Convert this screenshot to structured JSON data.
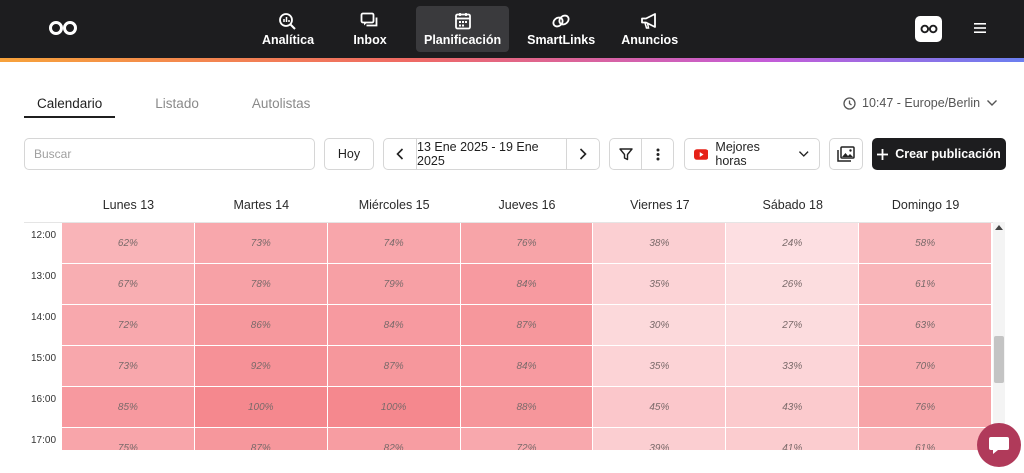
{
  "nav": {
    "items": [
      {
        "label": "Analítica",
        "icon": "analytics-icon"
      },
      {
        "label": "Inbox",
        "icon": "inbox-icon"
      },
      {
        "label": "Planificación",
        "icon": "calendar-icon",
        "active": true
      },
      {
        "label": "SmartLinks",
        "icon": "link-icon"
      },
      {
        "label": "Anuncios",
        "icon": "megaphone-icon"
      }
    ]
  },
  "tabs": [
    {
      "label": "Calendario",
      "active": true
    },
    {
      "label": "Listado"
    },
    {
      "label": "Autolistas"
    }
  ],
  "timezone": "10:47 - Europe/Berlin",
  "toolbar": {
    "search_placeholder": "Buscar",
    "today_label": "Hoy",
    "date_range": "13 Ene 2025 - 19 Ene 2025",
    "best_hours_label": "Mejores horas",
    "create_label": "Crear publicación"
  },
  "calendar": {
    "days": [
      "Lunes 13",
      "Martes 14",
      "Miércoles 15",
      "Jueves 16",
      "Viernes 17",
      "Sábado 18",
      "Domingo 19"
    ],
    "times": [
      "12:00",
      "13:00",
      "14:00",
      "15:00",
      "16:00",
      "17:00"
    ],
    "values": [
      [
        62,
        73,
        74,
        76,
        38,
        24,
        58
      ],
      [
        67,
        78,
        79,
        84,
        35,
        26,
        61
      ],
      [
        72,
        86,
        84,
        87,
        30,
        27,
        63
      ],
      [
        73,
        92,
        87,
        84,
        35,
        33,
        70
      ],
      [
        85,
        100,
        100,
        88,
        45,
        43,
        76
      ],
      [
        75,
        87,
        82,
        72,
        39,
        41,
        61
      ]
    ],
    "heat_color_low": "#fde4e6",
    "heat_color_high": "#f5888e"
  },
  "colors": {
    "topbar": "#1d1d1f",
    "accent": "#1d1d1f",
    "youtube": "#e62117"
  }
}
